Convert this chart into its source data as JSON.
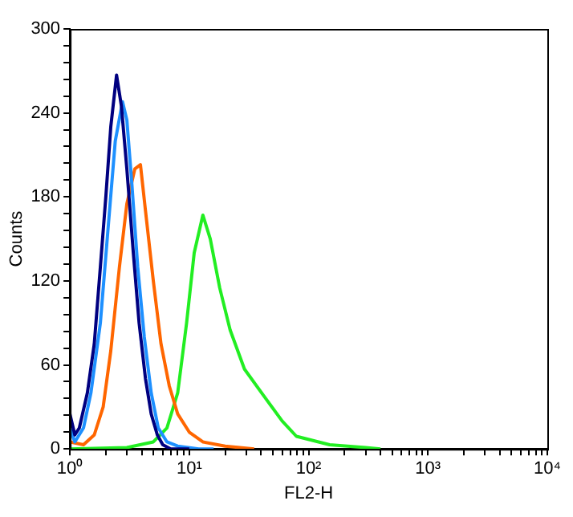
{
  "chart_data": {
    "type": "line",
    "xlabel": "FL2-H",
    "ylabel": "Counts",
    "log": "x",
    "grid": false,
    "legend": false,
    "marker": "none",
    "line_style": "solid",
    "xlim": [
      1,
      10000
    ],
    "xticks": [
      {
        "value": 1,
        "label": "10⁰"
      },
      {
        "value": 2,
        "label": null
      },
      {
        "value": 3,
        "label": null
      },
      {
        "value": 4,
        "label": null
      },
      {
        "value": 5,
        "label": null
      },
      {
        "value": 6,
        "label": null
      },
      {
        "value": 7,
        "label": null
      },
      {
        "value": 8,
        "label": null
      },
      {
        "value": 9,
        "label": null
      },
      {
        "value": 10,
        "label": "10¹"
      },
      {
        "value": 20,
        "label": null
      },
      {
        "value": 30,
        "label": null
      },
      {
        "value": 40,
        "label": null
      },
      {
        "value": 50,
        "label": null
      },
      {
        "value": 60,
        "label": null
      },
      {
        "value": 70,
        "label": null
      },
      {
        "value": 80,
        "label": null
      },
      {
        "value": 90,
        "label": null
      },
      {
        "value": 100,
        "label": "10²"
      },
      {
        "value": 200,
        "label": null
      },
      {
        "value": 300,
        "label": null
      },
      {
        "value": 400,
        "label": null
      },
      {
        "value": 500,
        "label": null
      },
      {
        "value": 600,
        "label": null
      },
      {
        "value": 700,
        "label": null
      },
      {
        "value": 800,
        "label": null
      },
      {
        "value": 900,
        "label": null
      },
      {
        "value": 1000,
        "label": "10³"
      },
      {
        "value": 2000,
        "label": null
      },
      {
        "value": 3000,
        "label": null
      },
      {
        "value": 4000,
        "label": null
      },
      {
        "value": 5000,
        "label": null
      },
      {
        "value": 6000,
        "label": null
      },
      {
        "value": 7000,
        "label": null
      },
      {
        "value": 8000,
        "label": null
      },
      {
        "value": 9000,
        "label": null
      },
      {
        "value": 10000,
        "label": "10⁴"
      }
    ],
    "ylim": [
      0,
      300
    ],
    "yticks": [
      0,
      {
        "value": 12,
        "label": null
      },
      {
        "value": 24,
        "label": null
      },
      {
        "value": 36,
        "label": null
      },
      {
        "value": 48,
        "label": null
      },
      60,
      {
        "value": 72,
        "label": null
      },
      {
        "value": 84,
        "label": null
      },
      {
        "value": 96,
        "label": null
      },
      {
        "value": 108,
        "label": null
      },
      120,
      {
        "value": 132,
        "label": null
      },
      {
        "value": 144,
        "label": null
      },
      {
        "value": 156,
        "label": null
      },
      {
        "value": 168,
        "label": null
      },
      180,
      {
        "value": 192,
        "label": null
      },
      {
        "value": 204,
        "label": null
      },
      {
        "value": 216,
        "label": null
      },
      {
        "value": 228,
        "label": null
      },
      240,
      {
        "value": 252,
        "label": null
      },
      {
        "value": 264,
        "label": null
      },
      {
        "value": 276,
        "label": null
      },
      {
        "value": 288,
        "label": null
      },
      300
    ],
    "series": [
      {
        "color": "#000080",
        "x": [
          1,
          1.1,
          1.2,
          1.4,
          1.6,
          1.8,
          2,
          2.2,
          2.46,
          2.7,
          3,
          3.4,
          3.8,
          4.3,
          4.8,
          5.4,
          6,
          7,
          10
        ],
        "values": [
          25,
          10,
          15,
          40,
          75,
          130,
          180,
          230,
          267,
          245,
          200,
          140,
          90,
          50,
          25,
          10,
          3,
          0,
          0
        ]
      },
      {
        "color": "#1e90ff",
        "x": [
          1,
          1.1,
          1.3,
          1.5,
          1.8,
          2.1,
          2.4,
          2.76,
          3,
          3.3,
          3.7,
          4.2,
          4.8,
          5.5,
          6.5,
          8,
          12,
          16
        ],
        "values": [
          15,
          5,
          15,
          40,
          90,
          160,
          220,
          248,
          235,
          190,
          130,
          80,
          40,
          15,
          5,
          2,
          0,
          0
        ]
      },
      {
        "color": "#ff6600",
        "x": [
          1,
          1.3,
          1.6,
          1.9,
          2.2,
          2.6,
          3,
          3.5,
          3.9,
          4.3,
          5,
          5.8,
          6.8,
          8,
          10,
          13,
          20,
          35
        ],
        "values": [
          5,
          3,
          10,
          30,
          70,
          130,
          175,
          200,
          203,
          170,
          120,
          75,
          45,
          25,
          12,
          5,
          2,
          0
        ]
      },
      {
        "color": "#22ee22",
        "x": [
          1,
          3,
          5,
          6.5,
          8,
          9.5,
          11,
          13,
          15,
          18,
          22,
          29,
          42,
          60,
          79,
          150,
          300,
          400
        ],
        "values": [
          0,
          1,
          5,
          15,
          40,
          90,
          140,
          167,
          150,
          115,
          85,
          57,
          38,
          20,
          9,
          3,
          1,
          0
        ]
      }
    ]
  }
}
